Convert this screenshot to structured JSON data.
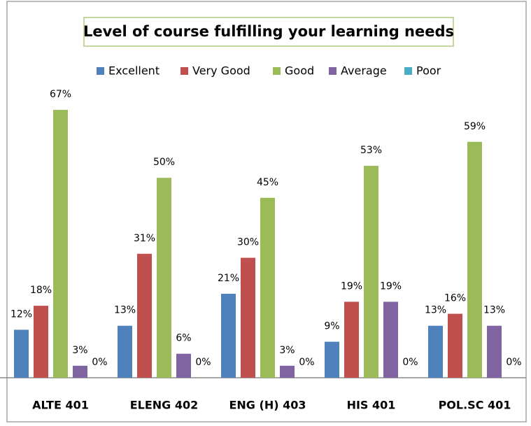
{
  "chart_data": {
    "type": "bar",
    "title": "Level of course fulfilling your learning needs",
    "categories": [
      "ALTE 401",
      "ELENG 402",
      "ENG (H) 403",
      "HIS 401",
      "POL.SC 401"
    ],
    "series": [
      {
        "name": "Excellent",
        "color": "#4f81bd",
        "values": [
          12,
          13,
          21,
          9,
          13
        ],
        "value_labels": [
          "12%",
          "13%",
          "21%",
          "9%",
          "13%"
        ]
      },
      {
        "name": "Very Good",
        "color": "#c0504d",
        "values": [
          18,
          31,
          30,
          19,
          16
        ],
        "value_labels": [
          "18%",
          "31%",
          "30%",
          "19%",
          "16%"
        ]
      },
      {
        "name": "Good",
        "color": "#9bbb59",
        "values": [
          67,
          50,
          45,
          53,
          59
        ],
        "value_labels": [
          "67%",
          "50%",
          "45%",
          "53%",
          "59%"
        ]
      },
      {
        "name": "Average",
        "color": "#8064a2",
        "values": [
          3,
          6,
          3,
          19,
          13
        ],
        "value_labels": [
          "3%",
          "6%",
          "3%",
          "19%",
          "13%"
        ]
      },
      {
        "name": "Poor",
        "color": "#4bacc6",
        "values": [
          0,
          0,
          0,
          0,
          0
        ],
        "value_labels": [
          "0%",
          "0%",
          "0%",
          "0%",
          "0%"
        ]
      }
    ],
    "legend": "top"
  }
}
